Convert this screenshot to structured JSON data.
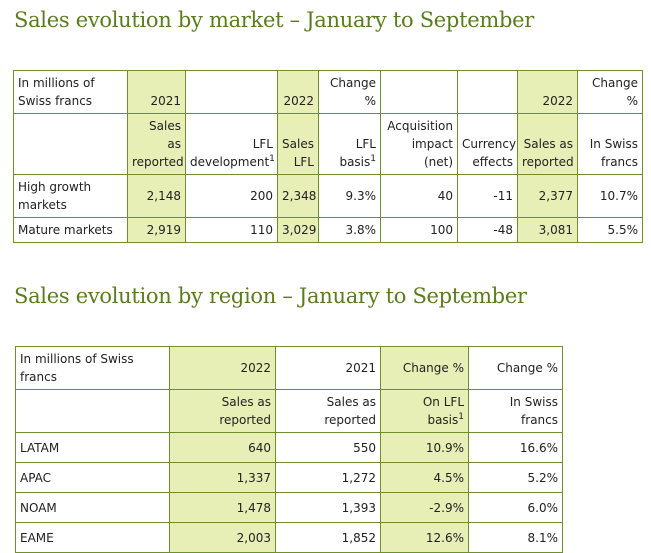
{
  "market": {
    "title": "Sales evolution by market – January to September",
    "header1": [
      "In millions of Swiss francs",
      "2021",
      "",
      "2022",
      "Change %",
      "",
      "",
      "2022",
      "Change %"
    ],
    "header2": [
      "",
      "Sales as reported",
      "LFL development",
      "Sales LFL",
      "LFL basis",
      "Acquisition impact (net)",
      "Currency effects",
      "Sales as reported",
      "In Swiss francs"
    ],
    "footnote_mark": "1",
    "rows": [
      [
        "High growth markets",
        "2,148",
        "200",
        "2,348",
        "9.3%",
        "40",
        "-11",
        "2,377",
        "10.7%"
      ],
      [
        "Mature markets",
        "2,919",
        "110",
        "3,029",
        "3.8%",
        "100",
        "-48",
        "3,081",
        "5.5%"
      ]
    ]
  },
  "region": {
    "title": "Sales evolution by region – January to September",
    "header1": [
      "In millions of Swiss francs",
      "2022",
      "2021",
      "Change %",
      "Change %"
    ],
    "header2": [
      "",
      "Sales as reported",
      "Sales as reported",
      "On LFL basis",
      "In Swiss francs"
    ],
    "footnote_mark": "1",
    "rows": [
      [
        "LATAM",
        "640",
        "550",
        "10.9%",
        "16.6%"
      ],
      [
        "APAC",
        "1,337",
        "1,272",
        "4.5%",
        "5.2%"
      ],
      [
        "NOAM",
        "1,478",
        "1,393",
        "-2.9%",
        "6.0%"
      ],
      [
        "EAME",
        "2,003",
        "1,852",
        "12.6%",
        "8.1%"
      ]
    ]
  },
  "colors": {
    "title": "#5b7c1e",
    "highlight": "#e8efb6",
    "border": "#6f8f2c"
  }
}
